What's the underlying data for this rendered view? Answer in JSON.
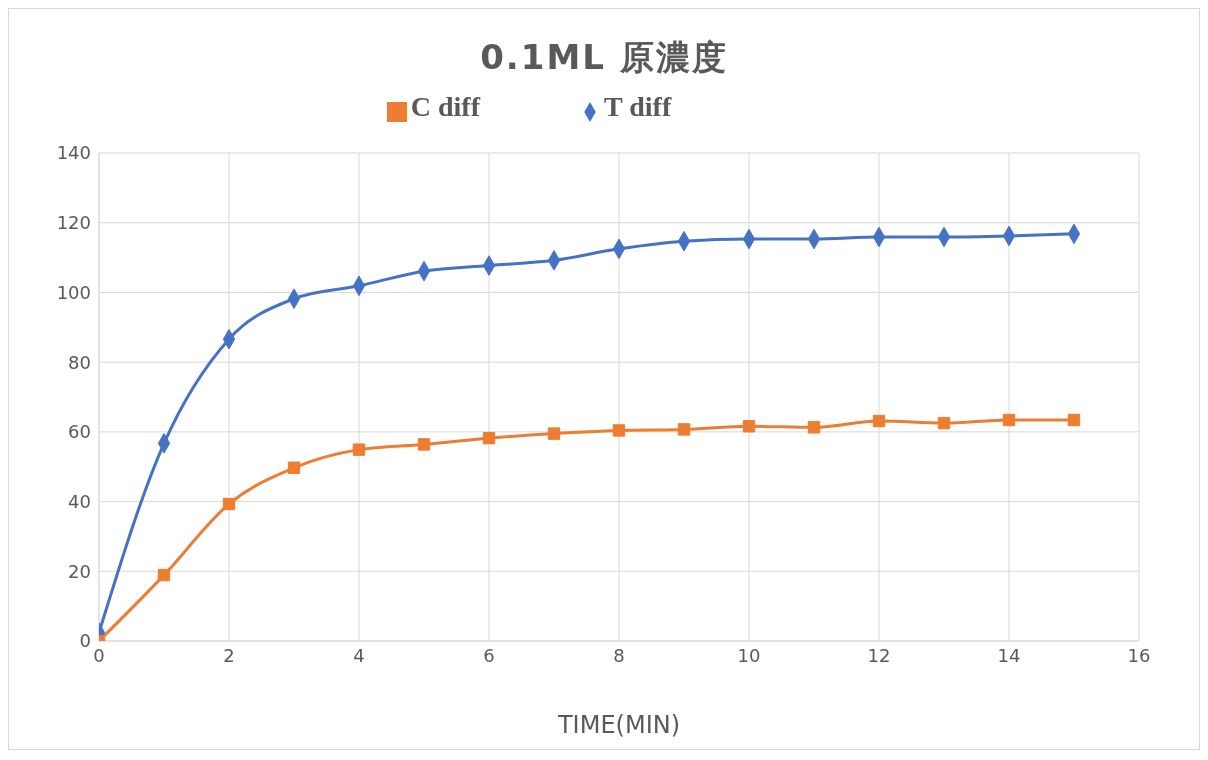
{
  "chart_data": {
    "type": "line",
    "title": "0.1ML 原濃度",
    "xlabel": "TIME(MIN)",
    "x": [
      0,
      1,
      2,
      3,
      4,
      5,
      6,
      7,
      8,
      9,
      10,
      11,
      12,
      13,
      14,
      15
    ],
    "series": [
      {
        "name": "T diff",
        "color": "#4472c4",
        "marker": "diamond",
        "values": [
          2.4,
          56.7,
          86.6,
          98.2,
          101.9,
          106.1,
          107.7,
          109.2,
          112.5,
          114.7,
          115.3,
          115.3,
          115.9,
          115.9,
          116.2,
          116.8
        ]
      },
      {
        "name": "C diff",
        "color": "#ed7d31",
        "marker": "square",
        "values": [
          0,
          18.9,
          39.3,
          49.7,
          54.9,
          56.4,
          58.2,
          59.5,
          60.4,
          60.7,
          61.6,
          61.3,
          63.1,
          62.5,
          63.4,
          63.4
        ]
      }
    ],
    "xlim": [
      0,
      16
    ],
    "xticks": [
      0,
      2,
      4,
      6,
      8,
      10,
      12,
      14,
      16
    ],
    "ylim": [
      0,
      140
    ],
    "yticks": [
      0,
      20,
      40,
      60,
      80,
      100,
      120,
      140
    ],
    "grid": true,
    "legend": "top"
  }
}
